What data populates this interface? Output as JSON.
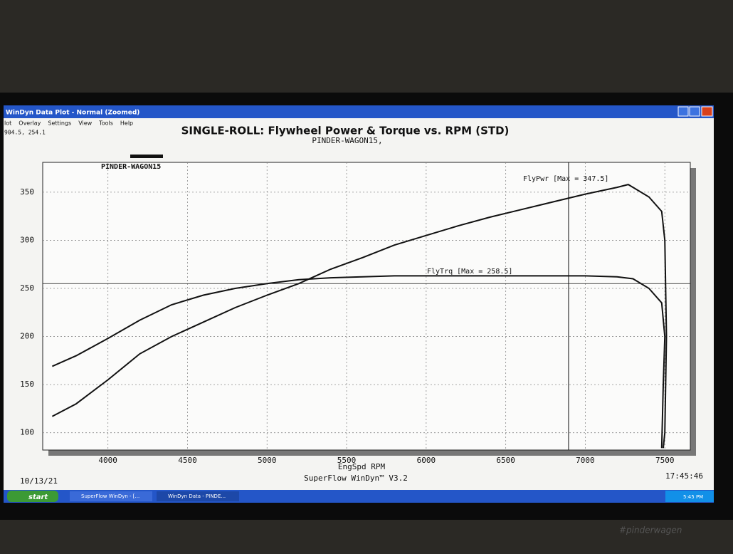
{
  "window": {
    "title": "WinDyn Data Plot - Normal  (Zoomed)",
    "menu": [
      "lot",
      "Overlay",
      "Settings",
      "View",
      "Tools",
      "Help"
    ],
    "cursor_readout": "904.5, 254.1"
  },
  "taskbar": {
    "start": "start",
    "tasks": [
      "SuperFlow WinDyn - [...",
      "WinDyn Data - PINDE..."
    ],
    "clock": "5:45 PM"
  },
  "watermark": "#pinderwagen",
  "chart_data": {
    "type": "line",
    "title": "SINGLE-ROLL: Flywheel Power & Torque vs. RPM (STD)",
    "subtitle": "PINDER-WAGON15,",
    "legend_label": "PINDER-WAGON15",
    "x_label": "EngSpd RPM",
    "footer_left": "10/13/21",
    "footer_center": "SuperFlow WinDyn™ V3.2",
    "footer_right": "17:45:46",
    "xlim": [
      3590,
      7660
    ],
    "ylim": [
      82,
      381
    ],
    "xticks": [
      4000,
      4500,
      5000,
      5500,
      6000,
      6500,
      7000,
      7500
    ],
    "yticks": [
      100,
      150,
      200,
      250,
      300,
      350
    ],
    "grid": true,
    "cursor": {
      "x": 6895,
      "y": 255
    },
    "series": [
      {
        "name": "FlyPwr [Max = 347.5]",
        "color": "#111111",
        "x": [
          3650,
          3800,
          4000,
          4200,
          4400,
          4600,
          4800,
          5000,
          5200,
          5400,
          5600,
          5800,
          6000,
          6200,
          6400,
          6600,
          6800,
          7000,
          7200,
          7270,
          7400,
          7480,
          7500,
          7510,
          7500,
          7490
        ],
        "values": [
          117,
          130,
          155,
          182,
          200,
          215,
          230,
          243,
          255,
          270,
          282,
          295,
          305,
          315,
          324,
          332,
          340,
          348,
          355,
          358,
          345,
          330,
          300,
          200,
          100,
          84
        ]
      },
      {
        "name": "FlyTrq [Max = 258.5]",
        "color": "#111111",
        "x": [
          3650,
          3800,
          4000,
          4200,
          4400,
          4600,
          4800,
          5000,
          5200,
          5400,
          5600,
          5800,
          6000,
          6200,
          6400,
          6600,
          6800,
          7000,
          7200,
          7300,
          7400,
          7480,
          7500,
          7490,
          7480
        ],
        "values": [
          169,
          180,
          198,
          217,
          233,
          243,
          250,
          255,
          259,
          261,
          262,
          263,
          263,
          263,
          263,
          263,
          263,
          263,
          262,
          260,
          250,
          235,
          200,
          150,
          84
        ]
      }
    ]
  }
}
